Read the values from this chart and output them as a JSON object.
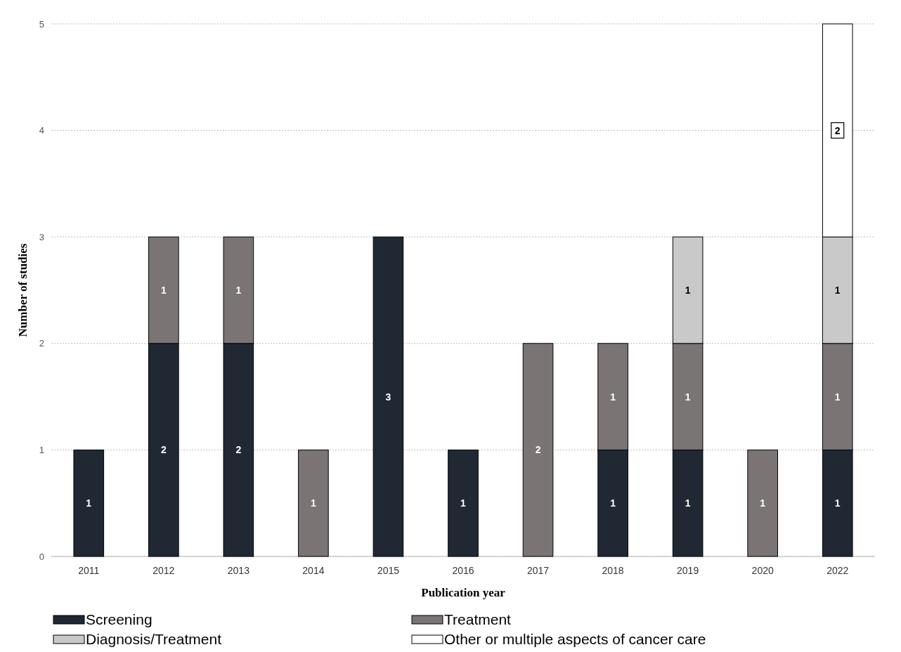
{
  "chart_data": {
    "type": "bar",
    "stacked": true,
    "xlabel": "Publication year",
    "ylabel": "Number of studies",
    "categories": [
      "2011",
      "2012",
      "2013",
      "2014",
      "2015",
      "2016",
      "2017",
      "2018",
      "2019",
      "2020",
      "2022"
    ],
    "series": [
      {
        "name": "Screening",
        "color": "#1f2833",
        "values": [
          1,
          2,
          2,
          null,
          3,
          1,
          null,
          1,
          1,
          null,
          1
        ]
      },
      {
        "name": "Treatment",
        "color": "#7a7474",
        "values": [
          null,
          1,
          1,
          1,
          null,
          null,
          2,
          1,
          1,
          1,
          1
        ]
      },
      {
        "name": "Diagnosis/Treatment",
        "color": "#c9c9c9",
        "values": [
          null,
          null,
          null,
          null,
          null,
          null,
          null,
          null,
          1,
          null,
          1
        ]
      },
      {
        "name": "Other or multiple aspects of cancer care",
        "color": "#ffffff",
        "values": [
          null,
          null,
          null,
          null,
          null,
          null,
          null,
          null,
          null,
          null,
          2
        ]
      }
    ],
    "ylim": [
      0,
      5
    ],
    "yticks": [
      0,
      1,
      2,
      3,
      4,
      5
    ],
    "grid": "y",
    "data_labels": true,
    "legend": "bottom"
  }
}
